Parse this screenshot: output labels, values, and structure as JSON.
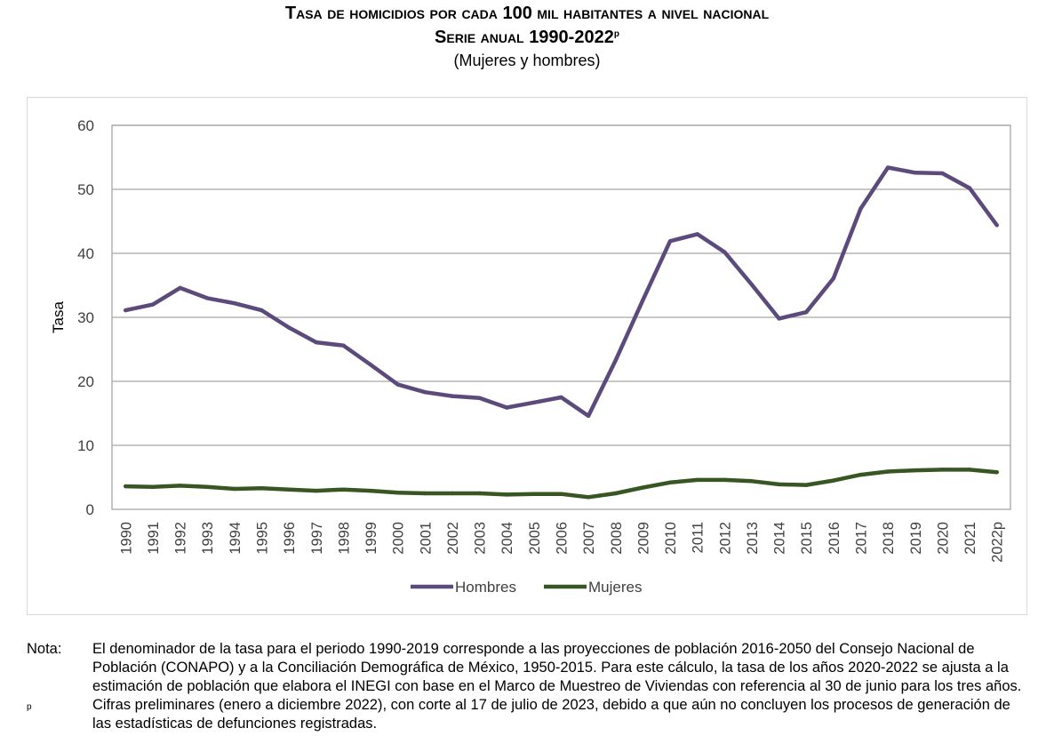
{
  "header": {
    "title_prefix": "Tasa de homicidios por cada",
    "title_number": "100",
    "title_suffix": "mil habitantes a nivel nacional",
    "title2_prefix": "Serie anual",
    "title2_years": "1990-2022",
    "title2_sup": "p",
    "subtitle": "(Mujeres y hombres)"
  },
  "notes": {
    "label": "Nota:",
    "text": "El denominador de la tasa para el periodo 1990-2019 corresponde a las proyecciones de población 2016-2050 del Consejo Nacional de Población (CONAPO) y a la Conciliación Demográfica de México, 1950-2015. Para este cálculo, la tasa de los años 2020-2022 se ajusta a la estimación de población que elabora el INEGI con base en el Marco de Muestreo de Viviendas con referencia al 30 de junio para los tres años.",
    "p_marker": "p",
    "p_text": "Cifras preliminares (enero a diciembre 2022), con corte al 17 de julio de 2023, debido a que aún no concluyen los procesos de generación de las estadísticas de defunciones registradas."
  },
  "chart_data": {
    "type": "line",
    "title": "",
    "xlabel": "",
    "ylabel": "Tasa",
    "ylim": [
      0,
      60
    ],
    "yticks": [
      0,
      10,
      20,
      30,
      40,
      50,
      60
    ],
    "grid": true,
    "legend_position": "bottom",
    "categories": [
      "1990",
      "1991",
      "1992",
      "1993",
      "1994",
      "1995",
      "1996",
      "1997",
      "1998",
      "1999",
      "2000",
      "2001",
      "2002",
      "2003",
      "2004",
      "2005",
      "2006",
      "2007",
      "2008",
      "2009",
      "2010",
      "2011",
      "2012",
      "2013",
      "2014",
      "2015",
      "2016",
      "2017",
      "2018",
      "2019",
      "2020",
      "2021",
      "2022p"
    ],
    "series": [
      {
        "name": "Hombres",
        "color": "#5b4a7b",
        "values": [
          31.1,
          32.0,
          34.6,
          33.0,
          32.2,
          31.1,
          28.4,
          26.1,
          25.6,
          22.6,
          19.5,
          18.3,
          17.7,
          17.4,
          15.9,
          16.7,
          17.5,
          14.6,
          23.3,
          32.7,
          41.9,
          43.0,
          40.2,
          35.1,
          29.8,
          30.8,
          36.1,
          47.0,
          53.4,
          52.6,
          52.5,
          50.2,
          44.4
        ]
      },
      {
        "name": "Mujeres",
        "color": "#375623",
        "values": [
          3.6,
          3.5,
          3.7,
          3.5,
          3.2,
          3.3,
          3.1,
          2.9,
          3.1,
          2.9,
          2.6,
          2.5,
          2.5,
          2.5,
          2.3,
          2.4,
          2.4,
          1.9,
          2.5,
          3.4,
          4.2,
          4.6,
          4.6,
          4.4,
          3.9,
          3.8,
          4.5,
          5.4,
          5.9,
          6.1,
          6.2,
          6.2,
          5.8
        ]
      }
    ]
  }
}
